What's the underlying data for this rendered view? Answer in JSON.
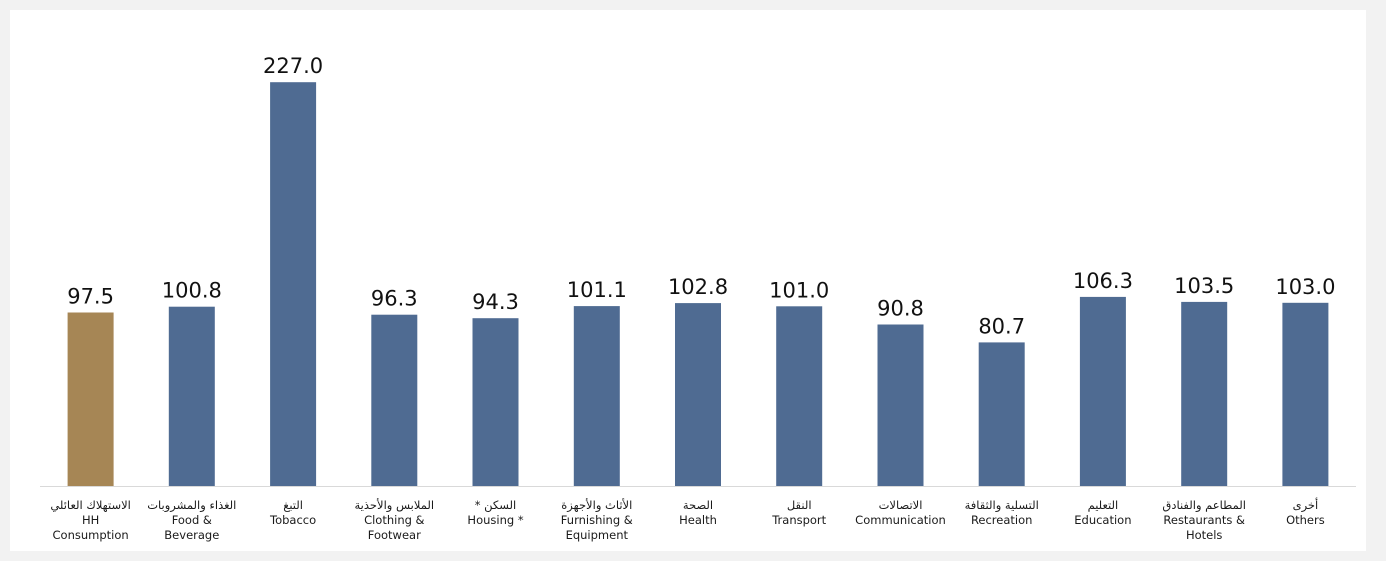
{
  "chart_data": {
    "type": "bar",
    "ylim": [
      0,
      240
    ],
    "grid": false,
    "legend": "none",
    "colors": {
      "highlight": "#a68655",
      "default": "#4f6b92",
      "axis": "#d9d9d9",
      "background": "#ffffff"
    },
    "categories": [
      {
        "ar": "الاستهلاك العائلي",
        "en": [
          "HH",
          "Consumption"
        ]
      },
      {
        "ar": "الغذاء والمشروبات",
        "en": [
          "Food &",
          "Beverage"
        ]
      },
      {
        "ar": "التبغ",
        "en": [
          "Tobacco"
        ]
      },
      {
        "ar": "الملابس والأحذية",
        "en": [
          "Clothing &",
          "Footwear"
        ]
      },
      {
        "ar": "السكن *",
        "en": [
          "Housing *"
        ]
      },
      {
        "ar": "الأثاث والأجهزة",
        "en": [
          "Furnishing &",
          "Equipment"
        ]
      },
      {
        "ar": "الصحة",
        "en": [
          "Health"
        ]
      },
      {
        "ar": "النقل",
        "en": [
          "Transport"
        ]
      },
      {
        "ar": "الاتصالات",
        "en": [
          "Communication"
        ]
      },
      {
        "ar": "التسلية والثقافة",
        "en": [
          "Recreation"
        ]
      },
      {
        "ar": "التعليم",
        "en": [
          "Education"
        ]
      },
      {
        "ar": "المطاعم والفنادق",
        "en": [
          "Restaurants &",
          "Hotels"
        ]
      },
      {
        "ar": "أخرى",
        "en": [
          "Others"
        ]
      }
    ],
    "values": [
      97.5,
      100.8,
      227.0,
      96.3,
      94.3,
      101.1,
      102.8,
      101.0,
      90.8,
      80.7,
      106.3,
      103.5,
      103.0
    ],
    "value_labels": [
      "97.5",
      "100.8",
      "227.0",
      "96.3",
      "94.3",
      "101.1",
      "102.8",
      "101.0",
      "90.8",
      "80.7",
      "106.3",
      "103.5",
      "103.0"
    ],
    "highlight_index": 0
  }
}
